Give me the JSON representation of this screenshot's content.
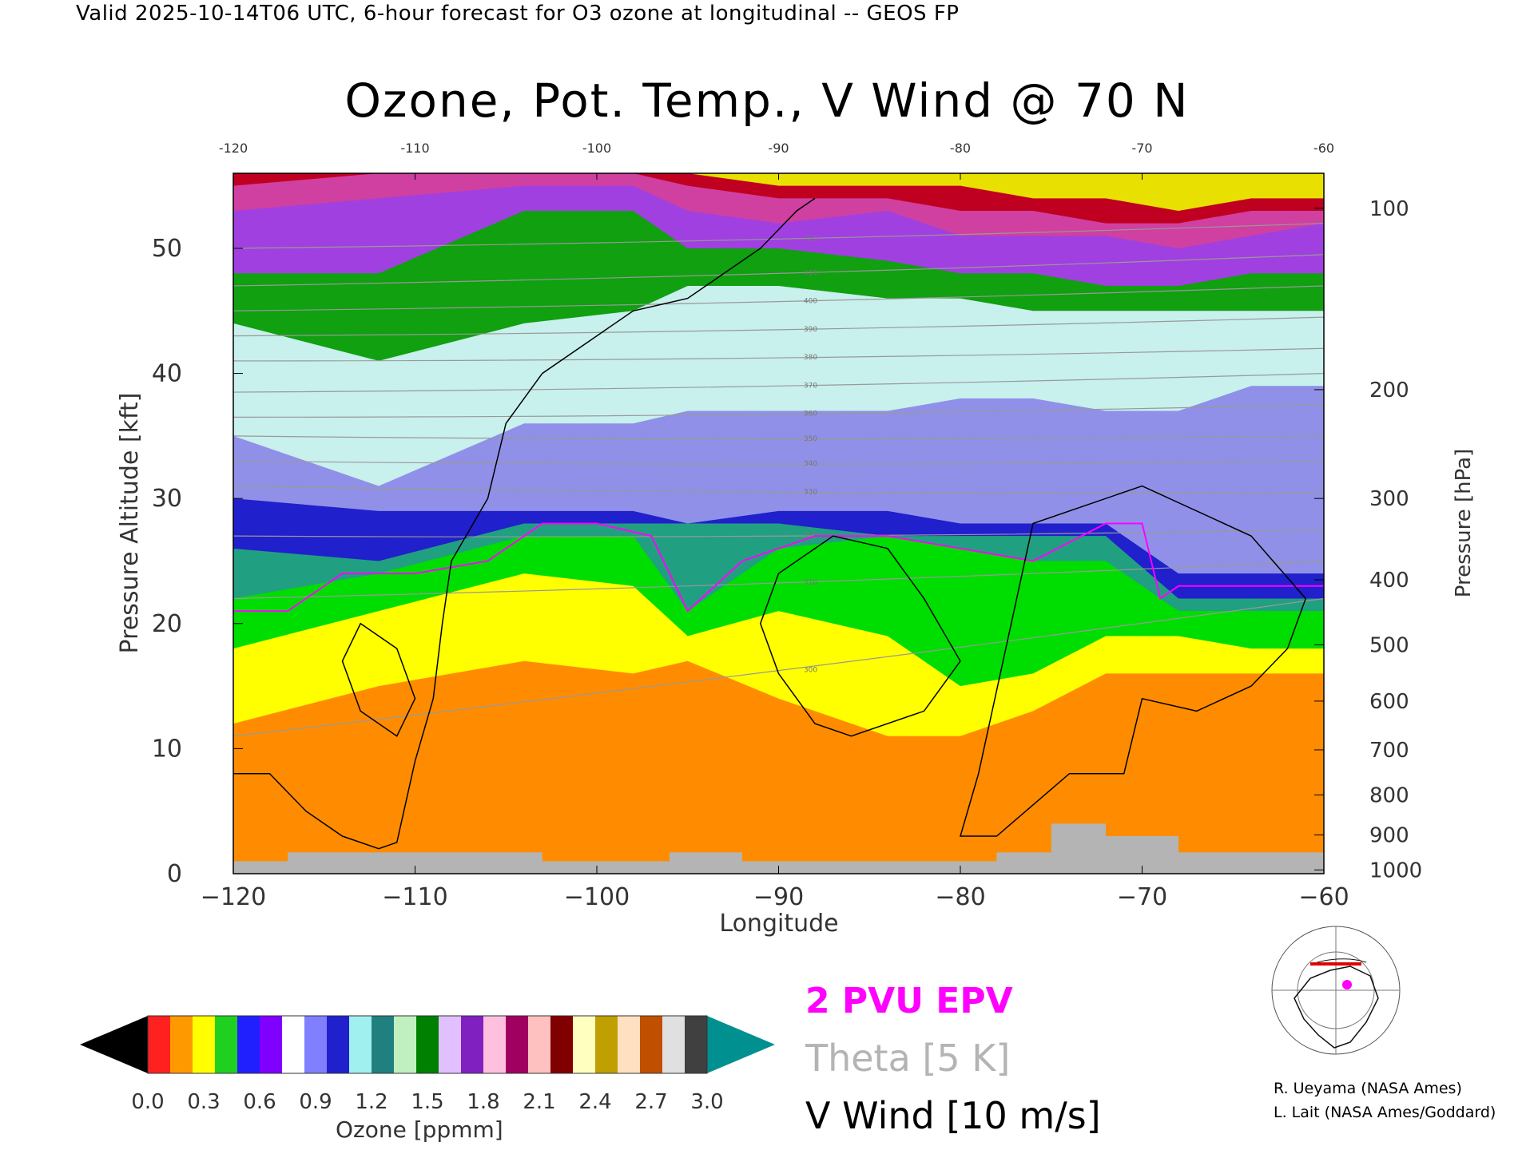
{
  "header": {
    "text": "Valid 2025-10-14T06 UTC, 6-hour forecast for O3 ozone at longitudinal -- GEOS FP"
  },
  "title": "Ozone, Pot. Temp., V Wind @ 70 N",
  "chart_data": {
    "type": "heatmap",
    "title": "Ozone, Pot. Temp., V Wind @ 70 N",
    "xlabel": "Longitude",
    "ylabel": "Pressure Altitude [kft]",
    "y2label": "Pressure [hPa]",
    "xlim": [
      -120,
      -60
    ],
    "ylim": [
      0,
      56
    ],
    "x_ticks": [
      -120,
      -110,
      -100,
      -90,
      -80,
      -70,
      -60
    ],
    "x_tick_labels": [
      "−120",
      "−110",
      "−100",
      "−90",
      "−80",
      "−70",
      "−60"
    ],
    "top_tick_labels": [
      "-120",
      "-110",
      "-100",
      "-90",
      "-80",
      "-70",
      "-60"
    ],
    "y_ticks": [
      0,
      10,
      20,
      30,
      40,
      50
    ],
    "y_tick_labels": [
      "0",
      "10",
      "20",
      "30",
      "40",
      "50"
    ],
    "pressure_ticks": [
      {
        "label": "100",
        "kft": 53.2
      },
      {
        "label": "200",
        "kft": 38.7
      },
      {
        "label": "300",
        "kft": 30.0
      },
      {
        "label": "400",
        "kft": 23.5
      },
      {
        "label": "500",
        "kft": 18.3
      },
      {
        "label": "600",
        "kft": 13.8
      },
      {
        "label": "700",
        "kft": 9.9
      },
      {
        "label": "800",
        "kft": 6.3
      },
      {
        "label": "900",
        "kft": 3.1
      },
      {
        "label": "1000",
        "kft": 0.3
      }
    ],
    "ozone_layer_tops": [
      {
        "name": "orange",
        "color": "#ff8c00",
        "x": [
          -120,
          -112,
          -104,
          -98,
          -95,
          -90,
          -84,
          -80,
          -76,
          -72,
          -68,
          -64,
          -60
        ],
        "kft": [
          12,
          15,
          17,
          16,
          17,
          14,
          11,
          11,
          13,
          16,
          16,
          16,
          16
        ]
      },
      {
        "name": "yellow",
        "color": "#ffff00",
        "x": [
          -120,
          -112,
          -104,
          -98,
          -95,
          -90,
          -84,
          -80,
          -76,
          -72,
          -68,
          -64,
          -60
        ],
        "kft": [
          18,
          21,
          24,
          23,
          19,
          21,
          19,
          15,
          16,
          19,
          19,
          18,
          18
        ]
      },
      {
        "name": "green",
        "color": "#00dd00",
        "x": [
          -120,
          -112,
          -104,
          -98,
          -95,
          -90,
          -84,
          -80,
          -76,
          -72,
          -68,
          -64,
          -60
        ],
        "kft": [
          22,
          24,
          27,
          27,
          21,
          26,
          27,
          26,
          25,
          25,
          21,
          21,
          21
        ]
      },
      {
        "name": "teal",
        "color": "#20a080",
        "x": [
          -120,
          -112,
          -104,
          -98,
          -95,
          -90,
          -84,
          -80,
          -76,
          -72,
          -68,
          -64,
          -60
        ],
        "kft": [
          26,
          25,
          28,
          28,
          28,
          28,
          27,
          27,
          27,
          27,
          22,
          22,
          22
        ]
      },
      {
        "name": "blue",
        "color": "#2020cc",
        "x": [
          -120,
          -112,
          -104,
          -98,
          -95,
          -90,
          -84,
          -80,
          -76,
          -72,
          -68,
          -64,
          -60
        ],
        "kft": [
          30,
          29,
          29,
          29,
          28,
          29,
          29,
          28,
          28,
          28,
          24,
          24,
          24
        ]
      },
      {
        "name": "light-blue",
        "color": "#9090e8",
        "x": [
          -120,
          -112,
          -104,
          -98,
          -95,
          -90,
          -84,
          -80,
          -76,
          -72,
          -68,
          -64,
          -60
        ],
        "kft": [
          35,
          31,
          36,
          36,
          37,
          37,
          37,
          38,
          38,
          37,
          37,
          39,
          39
        ]
      },
      {
        "name": "pale-cyan",
        "color": "#c8f0ec",
        "x": [
          -120,
          -112,
          -104,
          -98,
          -95,
          -90,
          -84,
          -80,
          -76,
          -72,
          -68,
          -64,
          -60
        ],
        "kft": [
          44,
          41,
          44,
          45,
          47,
          47,
          46,
          46,
          45,
          45,
          45,
          45,
          45
        ]
      },
      {
        "name": "green-dark",
        "color": "#10a010",
        "x": [
          -120,
          -112,
          -104,
          -98,
          -95,
          -90,
          -84,
          -80,
          -76,
          -72,
          -68,
          -64,
          -60
        ],
        "kft": [
          48,
          48,
          53,
          53,
          50,
          50,
          49,
          48,
          48,
          47,
          47,
          48,
          48
        ]
      },
      {
        "name": "purple",
        "color": "#a040e0",
        "x": [
          -120,
          -112,
          -104,
          -98,
          -95,
          -90,
          -84,
          -80,
          -76,
          -72,
          -68,
          -64,
          -60
        ],
        "kft": [
          53,
          54,
          55,
          55,
          53,
          52,
          53,
          51,
          51,
          51,
          50,
          51,
          52
        ]
      },
      {
        "name": "magenta",
        "color": "#d040a0",
        "x": [
          -120,
          -112,
          -104,
          -98,
          -95,
          -90,
          -84,
          -80,
          -76,
          -72,
          -68,
          -64,
          -60
        ],
        "kft": [
          55,
          56,
          56,
          56,
          55,
          54,
          54,
          53,
          53,
          52,
          52,
          53,
          53
        ]
      },
      {
        "name": "red",
        "color": "#c00020",
        "x": [
          -120,
          -112,
          -104,
          -98,
          -95,
          -90,
          -84,
          -80,
          -76,
          -72,
          -68,
          -64,
          -60
        ],
        "kft": [
          56,
          56,
          56,
          56,
          56,
          55,
          55,
          55,
          54,
          54,
          53,
          54,
          54
        ]
      },
      {
        "name": "yellow-top",
        "color": "#e8e000",
        "x": [
          -120,
          -112,
          -104,
          -98,
          -95,
          -90,
          -84,
          -80,
          -76,
          -72,
          -68,
          -64,
          -60
        ],
        "kft": [
          56,
          56,
          56,
          56,
          56,
          56,
          56,
          56,
          56,
          56,
          56,
          56,
          56
        ]
      }
    ],
    "terrain": {
      "color": "#b4b4b4",
      "x": [
        -120,
        -117,
        -117,
        -103,
        -103,
        -96,
        -96,
        -92,
        -92,
        -78,
        -78,
        -75,
        -75,
        -72,
        -72,
        -68,
        -68,
        -60
      ],
      "kft": [
        1,
        1,
        1.7,
        1.7,
        1.0,
        1.0,
        1.7,
        1.7,
        1.0,
        1.0,
        1.7,
        1.7,
        4.0,
        4.0,
        3.0,
        3.0,
        1.7,
        1.7
      ]
    },
    "theta_contours": {
      "color": "#999999",
      "levels": [
        300,
        310,
        320,
        330,
        340,
        350,
        360,
        370,
        380,
        390,
        400,
        410,
        420
      ],
      "kft_at_-120": [
        11,
        22,
        27,
        31,
        33,
        35,
        36.5,
        38.5,
        41,
        43,
        45,
        47,
        50
      ],
      "kft_at_-60": [
        22,
        25,
        27.5,
        30.5,
        33,
        35,
        37.5,
        40,
        42,
        44.5,
        47,
        49.5,
        52
      ]
    },
    "epv_2pvu": {
      "color": "#ff00ff",
      "x": [
        -120,
        -117,
        -114,
        -110,
        -106,
        -103,
        -100,
        -97,
        -95,
        -92,
        -88,
        -84,
        -80,
        -76,
        -72,
        -70,
        -69,
        -68,
        -66,
        -62,
        -60
      ],
      "kft": [
        21,
        21,
        24,
        24,
        25,
        28,
        28,
        27,
        21,
        25,
        27,
        27,
        26,
        25,
        28,
        28,
        22,
        23,
        23,
        23,
        23
      ]
    },
    "vwind_zero": {
      "color": "#000000",
      "x": [
        -120,
        -118,
        -116,
        -114,
        -112,
        -111,
        -110,
        -109,
        -108.5,
        -108,
        -106,
        -105,
        -103,
        -100,
        -98,
        -95,
        -93,
        -91,
        -89,
        -88
      ],
      "kft": [
        8,
        8,
        5,
        3,
        2,
        2.5,
        9,
        14,
        20,
        25,
        30,
        36,
        40,
        43,
        45,
        46,
        48,
        50,
        53,
        54
      ]
    },
    "vwind_contours": [
      {
        "name": "vwind-loop-east",
        "x": [
          -76,
          -70,
          -67,
          -64,
          -61,
          -62,
          -64,
          -67,
          -70,
          -71,
          -74,
          -78,
          -80,
          -79,
          -76
        ],
        "kft": [
          28,
          31,
          29,
          27,
          22,
          18,
          15,
          13,
          14,
          8,
          8,
          3,
          3,
          8,
          28
        ]
      },
      {
        "name": "vwind-loop-center",
        "x": [
          -90,
          -87,
          -84,
          -82,
          -80,
          -82,
          -86,
          -88,
          -90,
          -91,
          -90
        ],
        "kft": [
          24,
          27,
          26,
          22,
          17,
          13,
          11,
          12,
          16,
          20,
          24
        ]
      },
      {
        "name": "vwind-loop-west",
        "x": [
          -113,
          -111,
          -110,
          -111,
          -113,
          -114,
          -113
        ],
        "kft": [
          20,
          18,
          14,
          11,
          13,
          17,
          20
        ]
      }
    ],
    "colorbar": {
      "label": "Ozone [ppmm]",
      "tick_labels": [
        "0.0",
        "0.3",
        "0.6",
        "0.9",
        "1.2",
        "1.5",
        "1.8",
        "2.1",
        "2.4",
        "2.7",
        "3.0"
      ],
      "colors": [
        "#000000",
        "#ff2020",
        "#ff9900",
        "#ffff00",
        "#20d020",
        "#2020ff",
        "#8000ff",
        "#ffffff",
        "#8080ff",
        "#2020cc",
        "#a0f0f0",
        "#208080",
        "#c0f0c0",
        "#008000",
        "#e0c0ff",
        "#8020c0",
        "#ffc0e0",
        "#a00060",
        "#ffc0c0",
        "#800000",
        "#ffffc0",
        "#c0a000",
        "#ffe0c0",
        "#c05000",
        "#e0e0e0",
        "#404040",
        "#009090"
      ]
    },
    "legend": {
      "epv": "2 PVU EPV",
      "theta": "Theta [5 K]",
      "wind": "V Wind [10 m/s]"
    }
  },
  "credits": {
    "line1": "R. Ueyama (NASA Ames)",
    "line2": "L. Lait (NASA Ames/Goddard)"
  }
}
